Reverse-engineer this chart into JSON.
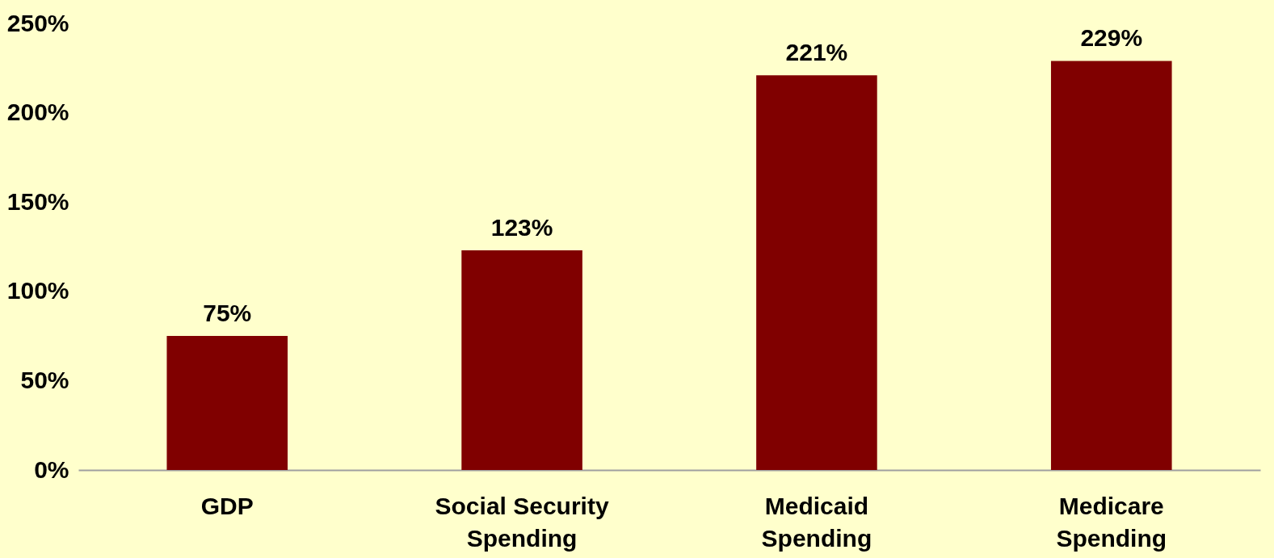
{
  "chart_data": {
    "type": "bar",
    "categories": [
      "GDP",
      "Social Security Spending",
      "Medicaid Spending",
      "Medicare Spending"
    ],
    "values": [
      75,
      123,
      221,
      229
    ],
    "color": "#800000",
    "value_labels": [
      "75%",
      "123%",
      "221%",
      "229%"
    ],
    "ylim": [
      0,
      250
    ],
    "yticks": [
      {
        "value": 0,
        "label": "0%"
      },
      {
        "value": 50,
        "label": "50%"
      },
      {
        "value": 100,
        "label": "100%"
      },
      {
        "value": 150,
        "label": "150%"
      },
      {
        "value": 200,
        "label": "200%"
      },
      {
        "value": 250,
        "label": "250%"
      }
    ],
    "grid": false
  }
}
